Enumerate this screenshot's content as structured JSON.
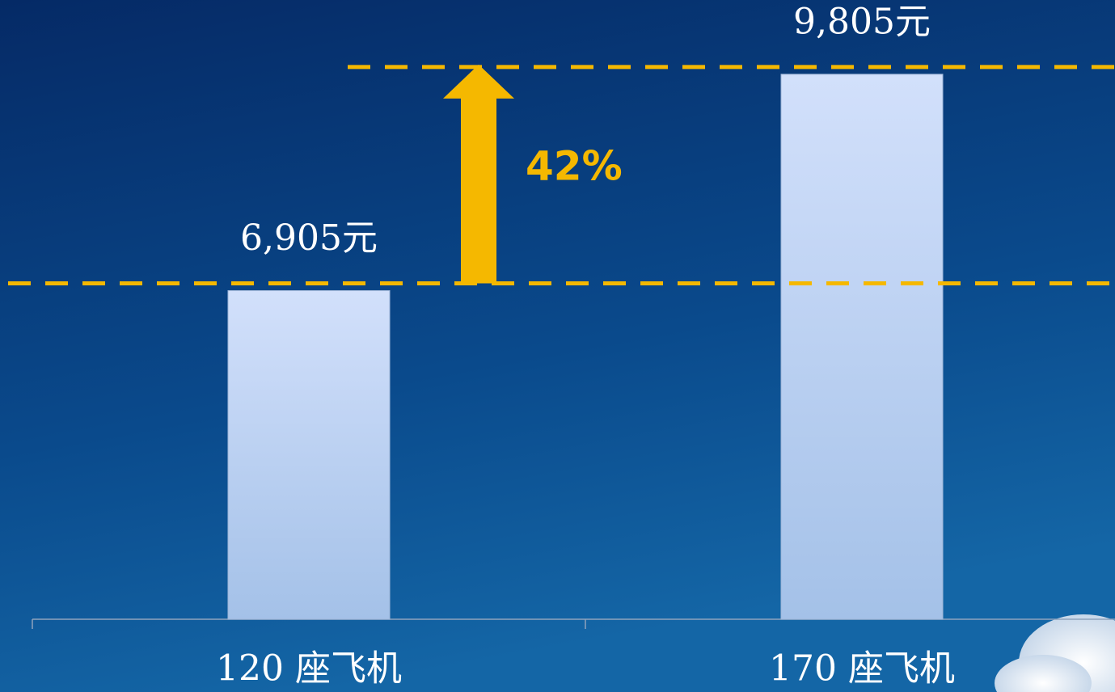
{
  "chart_data": {
    "type": "bar",
    "categories": [
      "120 座飞机",
      "170 座飞机"
    ],
    "values": [
      6905,
      9805
    ],
    "value_labels": [
      "6,905元",
      "9,805元"
    ],
    "annotation": "42%",
    "ylim": [
      2500,
      10800
    ],
    "color": "#b4c9ee",
    "reference_color": "#f5b800"
  }
}
